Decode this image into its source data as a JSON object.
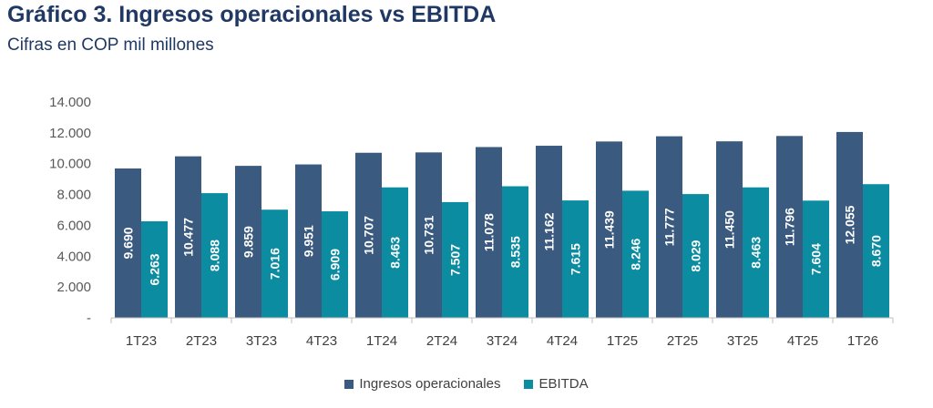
{
  "title": "Gráfico 3. Ingresos operacionales vs EBITDA",
  "subtitle": "Cifras en COP mil millones",
  "chart_data": {
    "type": "bar",
    "categories": [
      "1T23",
      "2T23",
      "3T23",
      "4T23",
      "1T24",
      "2T24",
      "3T24",
      "4T24",
      "1T25",
      "2T25",
      "3T25",
      "4T25",
      "1T26"
    ],
    "series": [
      {
        "name": "Ingresos operacionales",
        "color": "#3b5a7f",
        "values": [
          9690,
          10477,
          9859,
          9951,
          10707,
          10731,
          11078,
          11162,
          11439,
          11777,
          11450,
          11796,
          12055
        ],
        "labels": [
          "9.690",
          "10.477",
          "9.859",
          "9.951",
          "10.707",
          "10.731",
          "11.078",
          "11.162",
          "11.439",
          "11.777",
          "11.450",
          "11.796",
          "12.055"
        ]
      },
      {
        "name": "EBITDA",
        "color": "#0b8ca1",
        "values": [
          6263,
          8088,
          7016,
          6909,
          8463,
          7507,
          8535,
          7615,
          8246,
          8029,
          8463,
          7604,
          8670
        ],
        "labels": [
          "6.263",
          "8.088",
          "7.016",
          "6.909",
          "8.463",
          "7.507",
          "8.535",
          "7.615",
          "8.246",
          "8.029",
          "8.463",
          "7.604",
          "8.670"
        ]
      }
    ],
    "ylim": [
      0,
      14000
    ],
    "y_ticks": [
      0,
      2000,
      4000,
      6000,
      8000,
      10000,
      12000,
      14000
    ],
    "y_tick_labels": [
      "-",
      "2.000",
      "4.000",
      "6.000",
      "8.000",
      "10.000",
      "12.000",
      "14.000"
    ],
    "grid": false,
    "legend_position": "bottom"
  }
}
